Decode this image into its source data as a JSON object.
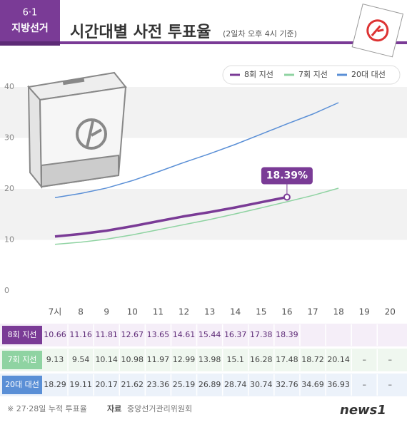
{
  "chart_data": {
    "type": "line",
    "badge_top": "6·1",
    "badge_bottom": "지방선거",
    "title": "시간대별 사전 투표율",
    "subtitle": "(2일차 오후 4시 기준)",
    "categories": [
      "7시",
      "8",
      "9",
      "10",
      "11",
      "12",
      "13",
      "14",
      "15",
      "16",
      "17",
      "18",
      "19",
      "20"
    ],
    "series": [
      {
        "name": "8회 지선",
        "color": "#7a3b96",
        "values": [
          10.66,
          11.16,
          11.81,
          12.67,
          13.65,
          14.61,
          15.44,
          16.37,
          17.38,
          18.39,
          null,
          null,
          null,
          null
        ]
      },
      {
        "name": "7회 지선",
        "color": "#8fd3a2",
        "values": [
          9.13,
          9.54,
          10.14,
          10.98,
          11.97,
          12.99,
          13.98,
          15.1,
          16.28,
          17.48,
          18.72,
          20.14,
          null,
          null
        ],
        "value_labels": [
          null,
          null,
          null,
          null,
          null,
          null,
          null,
          null,
          null,
          null,
          null,
          null,
          "–",
          "–"
        ]
      },
      {
        "name": "20대 대선",
        "color": "#5a8fd6",
        "values": [
          18.29,
          19.11,
          20.17,
          21.62,
          23.36,
          25.19,
          26.89,
          28.74,
          30.74,
          32.76,
          34.69,
          36.93,
          null,
          null
        ],
        "value_labels": [
          null,
          null,
          null,
          null,
          null,
          null,
          null,
          null,
          null,
          null,
          null,
          null,
          "–",
          "–"
        ]
      }
    ],
    "annotation": {
      "x": "16",
      "value": 18.39,
      "label": "18.39%"
    },
    "ylim": [
      0,
      40
    ],
    "yticks": [
      0,
      10,
      20,
      30,
      40
    ],
    "grid": "bands",
    "note": "※ 27·28일 누적 투표율",
    "source_label": "자료",
    "source": "중앙선거관리위원회",
    "logo": "news1"
  }
}
